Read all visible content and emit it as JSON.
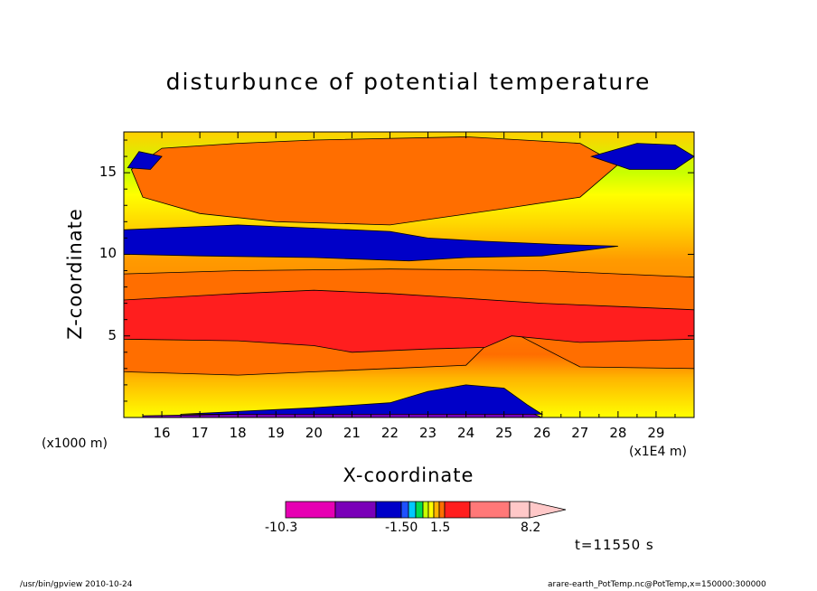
{
  "chart_data": {
    "type": "heatmap",
    "title": "disturbunce of potential temperature",
    "xlabel": "X-coordinate",
    "ylabel": "Z-coordinate",
    "x_unit_note": "(x1000 m)",
    "x_scale_note": "(x1E4 m)",
    "x_ticks": [
      "16",
      "17",
      "18",
      "19",
      "20",
      "21",
      "22",
      "23",
      "24",
      "25",
      "26",
      "27",
      "28",
      "29"
    ],
    "x_tick_values": [
      16,
      17,
      18,
      19,
      20,
      21,
      22,
      23,
      24,
      25,
      26,
      27,
      28,
      29
    ],
    "y_ticks": [
      "15",
      "10",
      "5"
    ],
    "y_tick_values": [
      15,
      10,
      5
    ],
    "xlim": [
      15,
      30
    ],
    "ylim": [
      0,
      17.5
    ],
    "colorbar": {
      "labels": [
        "-10.3",
        "-1.50",
        "1.5",
        "8.2"
      ],
      "colors": [
        "#e600b3",
        "#7a00b8",
        "#0000c8",
        "#1e50ff",
        "#00c8ff",
        "#00dc50",
        "#c8ff00",
        "#ffff00",
        "#ffb400",
        "#ff6e00",
        "#ff1e1e",
        "#ff7878",
        "#ffc8c8"
      ]
    },
    "layers": [
      {
        "name": "surface_purple",
        "color": "#7a00b8",
        "pts": [
          [
            15.5,
            0
          ],
          [
            26,
            0
          ],
          [
            25.8,
            0.2
          ],
          [
            25,
            0.6
          ],
          [
            24,
            0.5
          ],
          [
            22,
            0.3
          ],
          [
            18,
            0.2
          ],
          [
            15.5,
            0.1
          ]
        ]
      },
      {
        "name": "surface_blue",
        "color": "#0000c8",
        "pts": [
          [
            16.5,
            0.2
          ],
          [
            20,
            0.6
          ],
          [
            22,
            0.9
          ],
          [
            23,
            1.6
          ],
          [
            24,
            2.0
          ],
          [
            25,
            1.8
          ],
          [
            25.6,
            0.8
          ],
          [
            26,
            0.2
          ]
        ]
      },
      {
        "name": "orange_upper",
        "color": "#ff6e00",
        "pts": [
          [
            15.2,
            15.2
          ],
          [
            16,
            16.5
          ],
          [
            18,
            16.8
          ],
          [
            20,
            17.0
          ],
          [
            24,
            17.2
          ],
          [
            27,
            16.8
          ],
          [
            28,
            15.5
          ],
          [
            27,
            13.5
          ],
          [
            25,
            12.8
          ],
          [
            23.5,
            12.3
          ],
          [
            22,
            11.8
          ],
          [
            19,
            12.0
          ],
          [
            17,
            12.5
          ],
          [
            15.5,
            13.5
          ]
        ]
      },
      {
        "name": "blue_band",
        "color": "#0000c8",
        "pts": [
          [
            15,
            11.5
          ],
          [
            18,
            11.8
          ],
          [
            22,
            11.4
          ],
          [
            23,
            11.0
          ],
          [
            24.5,
            10.8
          ],
          [
            26.5,
            10.6
          ],
          [
            28,
            10.5
          ],
          [
            26,
            9.9
          ],
          [
            24,
            9.8
          ],
          [
            22.5,
            9.6
          ],
          [
            20,
            9.8
          ],
          [
            17,
            9.9
          ],
          [
            15,
            10.0
          ]
        ]
      },
      {
        "name": "orange_mid",
        "color": "#ff6e00",
        "pts": [
          [
            15,
            8.8
          ],
          [
            18,
            9.0
          ],
          [
            22,
            9.1
          ],
          [
            26,
            9.0
          ],
          [
            30,
            8.6
          ],
          [
            30,
            3.0
          ],
          [
            27,
            3.1
          ],
          [
            25,
            5.5
          ],
          [
            24,
            3.2
          ],
          [
            22,
            3.0
          ],
          [
            20,
            2.8
          ],
          [
            18,
            2.6
          ],
          [
            15,
            2.8
          ]
        ]
      },
      {
        "name": "red_band",
        "color": "#ff1e1e",
        "pts": [
          [
            15,
            7.2
          ],
          [
            18,
            7.6
          ],
          [
            20,
            7.8
          ],
          [
            22,
            7.6
          ],
          [
            24,
            7.3
          ],
          [
            26,
            7.0
          ],
          [
            28,
            6.8
          ],
          [
            30,
            6.6
          ],
          [
            30,
            4.8
          ],
          [
            27,
            4.6
          ],
          [
            25.2,
            5.0
          ],
          [
            24.5,
            4.3
          ],
          [
            23,
            4.2
          ],
          [
            21,
            4.0
          ],
          [
            20,
            4.4
          ],
          [
            18,
            4.7
          ],
          [
            15,
            4.8
          ]
        ]
      },
      {
        "name": "blue_topright",
        "color": "#0000c8",
        "pts": [
          [
            27.3,
            16.0
          ],
          [
            28.5,
            16.8
          ],
          [
            29.5,
            16.7
          ],
          [
            30,
            16.0
          ],
          [
            29.5,
            15.2
          ],
          [
            28.3,
            15.2
          ]
        ]
      },
      {
        "name": "blue_topleft",
        "color": "#0000c8",
        "pts": [
          [
            15.1,
            15.3
          ],
          [
            15.4,
            16.3
          ],
          [
            16.0,
            16.0
          ],
          [
            15.7,
            15.2
          ]
        ]
      }
    ]
  },
  "colorbar_arrow_color": "#ffc8c8",
  "timestamp": "t=11550 s",
  "footer_left": "/usr/bin/gpview   2010-10-24",
  "footer_right": "arare-earth_PotTemp.nc@PotTemp,x=150000:300000"
}
